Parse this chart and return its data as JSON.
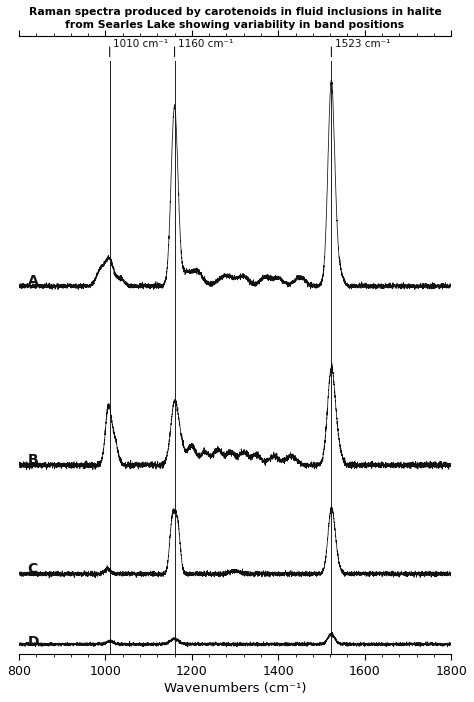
{
  "title_line1": "Raman spectra produced by carotenoids in fluid inclusions in halite",
  "title_line2": "from Searles Lake showing variability in band positions",
  "xlabel": "Wavenumbers (cm⁻¹)",
  "xmin": 800,
  "xmax": 1800,
  "xticks": [
    800,
    1000,
    1200,
    1400,
    1600,
    1800
  ],
  "peak_labels": [
    {
      "x": 1010,
      "label": "1010 cm⁻¹"
    },
    {
      "x": 1160,
      "label": "1160 cm⁻¹"
    },
    {
      "x": 1523,
      "label": "1523 cm⁻¹"
    }
  ],
  "spectrum_labels": [
    "A",
    "B",
    "C",
    "D"
  ],
  "offsets": [
    2.8,
    1.4,
    0.55,
    0.0
  ],
  "color": "#111111",
  "background": "#ffffff"
}
